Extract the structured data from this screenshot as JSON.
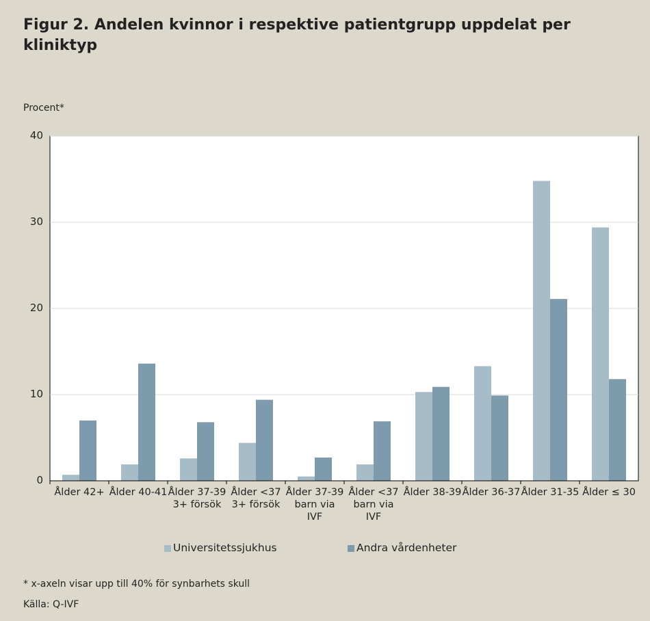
{
  "chart_data": {
    "type": "bar",
    "title": "Figur 2. Andelen kvinnor i respektive patientgrupp uppdelat  per kliniktyp",
    "y_label": "Procent*",
    "categories": [
      "Ålder 42+",
      "Ålder 40-41",
      "Ålder 37-39 3+ försök",
      "Ålder <37 3+ försök",
      "Ålder 37-39 barn via IVF",
      "Ålder <37 barn via IVF",
      "Ålder 38-39",
      "Ålder 36-37",
      "Ålder 31-35",
      "Ålder ≤ 30"
    ],
    "series": [
      {
        "name": "Universitetssjukhus",
        "color": "#a7bcc9",
        "values": [
          0.7,
          1.9,
          2.6,
          4.4,
          0.5,
          1.9,
          10.3,
          13.3,
          34.8,
          29.4
        ]
      },
      {
        "name": "Andra vårdenheter",
        "color": "#7e9bae",
        "values": [
          7.0,
          13.6,
          6.8,
          9.4,
          2.7,
          6.9,
          10.9,
          9.9,
          21.1,
          11.8
        ]
      }
    ],
    "ylim": [
      0,
      40
    ],
    "yticks": [
      0,
      10,
      20,
      30,
      40
    ],
    "grid": true,
    "notes": [
      "* x-axeln visar upp till 40% för synbarhets skull",
      "Källa: Q-IVF"
    ]
  }
}
